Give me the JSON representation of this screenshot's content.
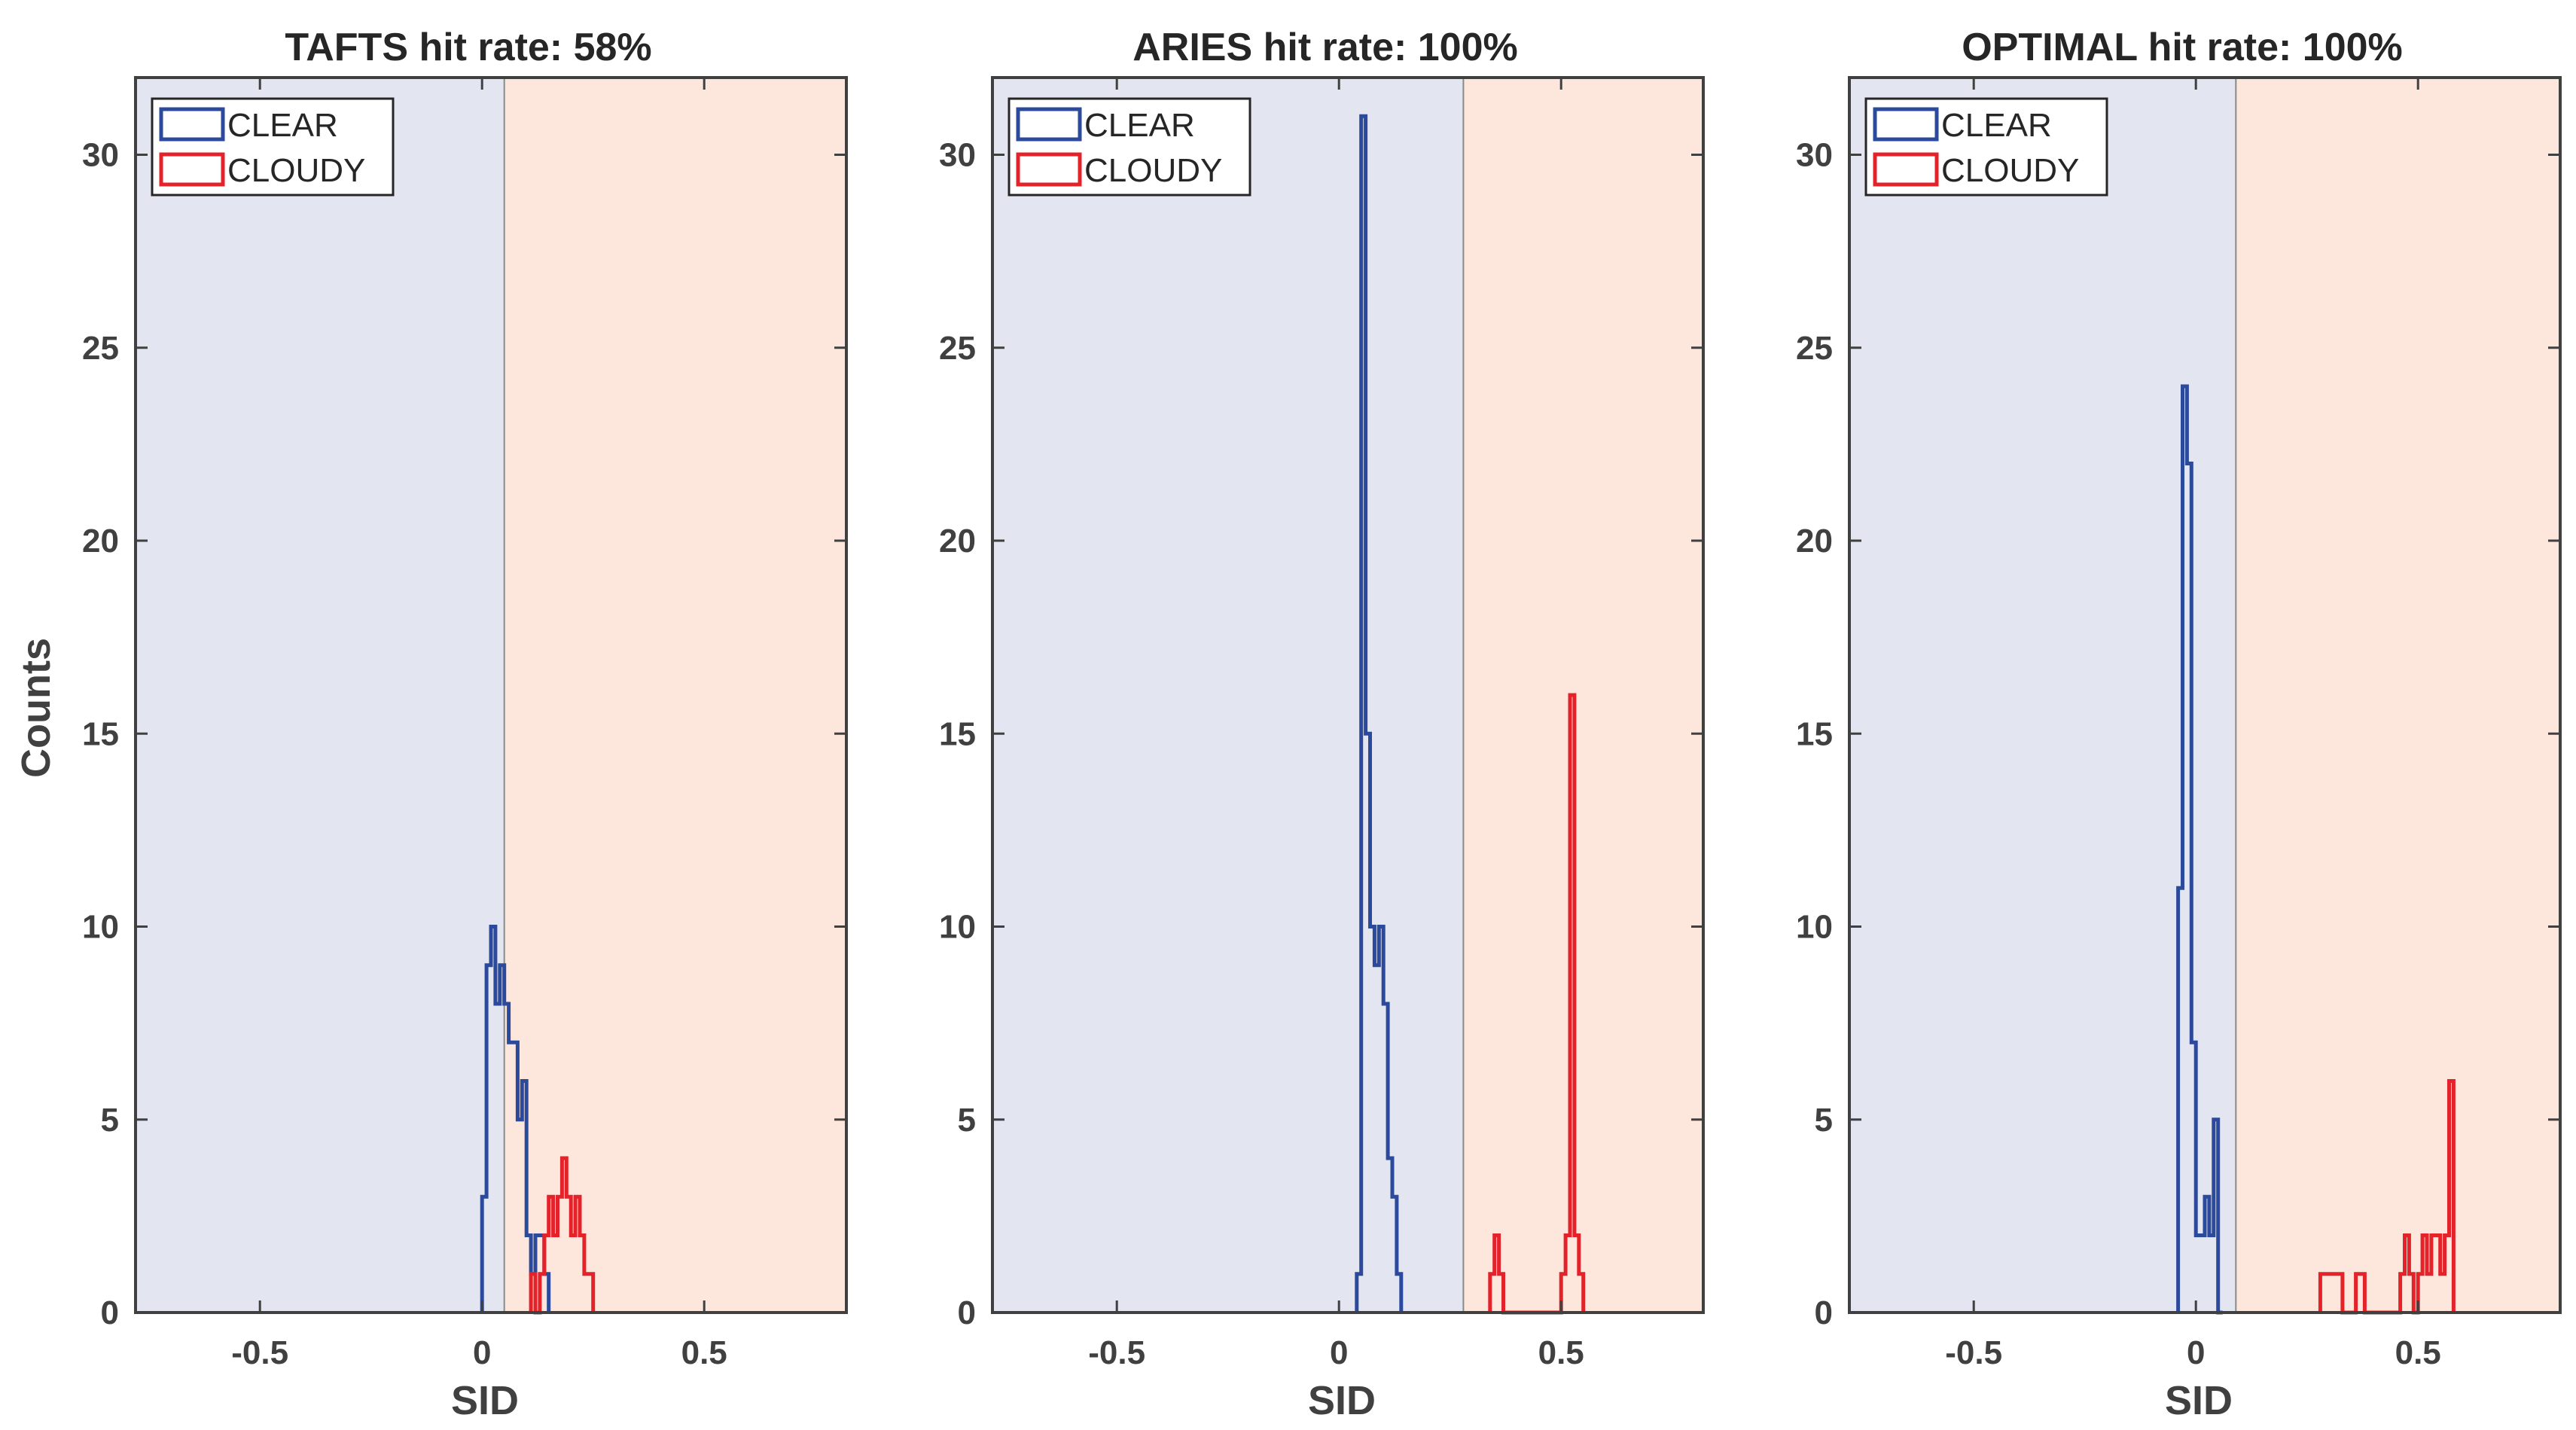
{
  "figure": {
    "ylabel": "Counts",
    "background": "#ffffff"
  },
  "colors": {
    "clear": "#2b4a9b",
    "cloudy": "#e4222a",
    "clear_bg": "#e3e5f1",
    "cloudy_bg": "#fde6dc",
    "axis": "#404040"
  },
  "legend": {
    "clear": "CLEAR",
    "cloudy": "CLOUDY"
  },
  "chart_data": [
    {
      "type": "histogram",
      "title": "TAFTS hit rate: 58%",
      "xlabel": "SID",
      "ylabel": "Counts",
      "xlim": [
        -0.78,
        0.82
      ],
      "ylim": [
        0,
        32
      ],
      "xticks": [
        -0.5,
        0,
        0.5
      ],
      "xtick_labels": [
        "-0.5",
        "0",
        "0.5"
      ],
      "yticks": [
        0,
        5,
        10,
        15,
        20,
        25,
        30
      ],
      "ytick_labels": [
        "0",
        "5",
        "10",
        "15",
        "20",
        "25",
        "30"
      ],
      "threshold": 0.05,
      "series": [
        {
          "name": "CLEAR",
          "bin_width": 0.01,
          "bins": [
            [
              0.0,
              3
            ],
            [
              0.01,
              9
            ],
            [
              0.02,
              10
            ],
            [
              0.03,
              8
            ],
            [
              0.04,
              9
            ],
            [
              0.05,
              8
            ],
            [
              0.06,
              7
            ],
            [
              0.07,
              7
            ],
            [
              0.08,
              5
            ],
            [
              0.09,
              6
            ],
            [
              0.1,
              2
            ],
            [
              0.11,
              1
            ],
            [
              0.12,
              2
            ],
            [
              0.13,
              2
            ],
            [
              0.14,
              1
            ]
          ]
        },
        {
          "name": "CLOUDY",
          "bin_width": 0.01,
          "bins": [
            [
              0.11,
              1
            ],
            [
              0.13,
              1
            ],
            [
              0.14,
              2
            ],
            [
              0.15,
              3
            ],
            [
              0.16,
              2
            ],
            [
              0.17,
              3
            ],
            [
              0.18,
              4
            ],
            [
              0.19,
              3
            ],
            [
              0.2,
              2
            ],
            [
              0.21,
              3
            ],
            [
              0.22,
              2
            ],
            [
              0.23,
              1
            ],
            [
              0.24,
              1
            ]
          ]
        }
      ]
    },
    {
      "type": "histogram",
      "title": "ARIES hit rate: 100%",
      "xlabel": "SID",
      "ylabel": "",
      "xlim": [
        -0.78,
        0.82
      ],
      "ylim": [
        0,
        32
      ],
      "xticks": [
        -0.5,
        0,
        0.5
      ],
      "xtick_labels": [
        "-0.5",
        "0",
        "0.5"
      ],
      "yticks": [
        0,
        5,
        10,
        15,
        20,
        25,
        30
      ],
      "ytick_labels": [
        "0",
        "5",
        "10",
        "15",
        "20",
        "25",
        "30"
      ],
      "threshold": 0.28,
      "series": [
        {
          "name": "CLEAR",
          "bin_width": 0.01,
          "bins": [
            [
              0.04,
              1
            ],
            [
              0.05,
              31
            ],
            [
              0.06,
              15
            ],
            [
              0.07,
              10
            ],
            [
              0.08,
              9
            ],
            [
              0.09,
              10
            ],
            [
              0.1,
              8
            ],
            [
              0.11,
              4
            ],
            [
              0.12,
              3
            ],
            [
              0.13,
              1
            ]
          ]
        },
        {
          "name": "CLOUDY",
          "bin_width": 0.01,
          "bins": [
            [
              0.34,
              1
            ],
            [
              0.35,
              2
            ],
            [
              0.36,
              1
            ],
            [
              0.5,
              1
            ],
            [
              0.51,
              2
            ],
            [
              0.52,
              16
            ],
            [
              0.53,
              2
            ],
            [
              0.54,
              1
            ]
          ]
        }
      ]
    },
    {
      "type": "histogram",
      "title": "OPTIMAL hit rate: 100%",
      "xlabel": "SID",
      "ylabel": "",
      "xlim": [
        -0.78,
        0.82
      ],
      "ylim": [
        0,
        32
      ],
      "xticks": [
        -0.5,
        0,
        0.5
      ],
      "xtick_labels": [
        "-0.5",
        "0",
        "0.5"
      ],
      "yticks": [
        0,
        5,
        10,
        15,
        20,
        25,
        30
      ],
      "ytick_labels": [
        "0",
        "5",
        "10",
        "15",
        "20",
        "25",
        "30"
      ],
      "threshold": 0.09,
      "series": [
        {
          "name": "CLEAR",
          "bin_width": 0.01,
          "bins": [
            [
              -0.04,
              11
            ],
            [
              -0.03,
              24
            ],
            [
              -0.02,
              22
            ],
            [
              -0.01,
              7
            ],
            [
              0.0,
              2
            ],
            [
              0.01,
              2
            ],
            [
              0.02,
              3
            ],
            [
              0.03,
              2
            ],
            [
              0.04,
              5
            ],
            [
              0.05,
              0
            ]
          ]
        },
        {
          "name": "CLOUDY",
          "bin_width": 0.01,
          "bins": [
            [
              0.28,
              1
            ],
            [
              0.29,
              1
            ],
            [
              0.3,
              1
            ],
            [
              0.31,
              1
            ],
            [
              0.32,
              1
            ],
            [
              0.36,
              1
            ],
            [
              0.37,
              1
            ],
            [
              0.46,
              1
            ],
            [
              0.47,
              2
            ],
            [
              0.48,
              1
            ],
            [
              0.5,
              1
            ],
            [
              0.51,
              2
            ],
            [
              0.52,
              1
            ],
            [
              0.53,
              2
            ],
            [
              0.54,
              2
            ],
            [
              0.55,
              1
            ],
            [
              0.56,
              2
            ],
            [
              0.57,
              6
            ]
          ]
        }
      ]
    }
  ]
}
